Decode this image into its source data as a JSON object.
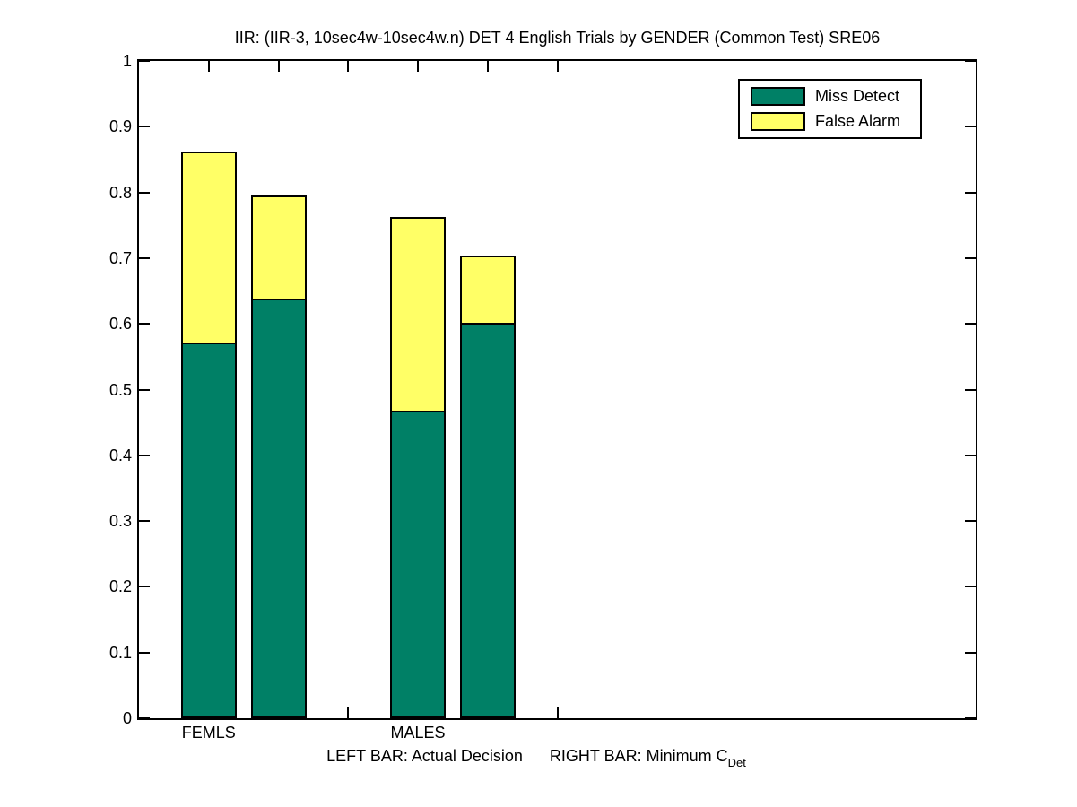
{
  "chart_data": {
    "type": "bar",
    "stacked": true,
    "title": "IIR: (IIR-3, 10sec4w-10sec4w.n) DET 4 English Trials by GENDER (Common Test) SRE06",
    "ylim": [
      0,
      1
    ],
    "xlim": [
      0.5,
      6.5
    ],
    "yticks": [
      0,
      0.1,
      0.2,
      0.3,
      0.4,
      0.5,
      0.6,
      0.7,
      0.8,
      0.9,
      1
    ],
    "xticks": [
      1,
      1.5,
      2,
      2.5,
      3,
      3.5
    ],
    "grid": false,
    "legend_position": "top-right",
    "bar_x": [
      1,
      1.5,
      2.5,
      3
    ],
    "bar_width": 0.4,
    "bar_descriptions": [
      "FEMLS Actual Decision",
      "FEMLS Minimum CDet",
      "MALES Actual Decision",
      "MALES Minimum CDet"
    ],
    "series": [
      {
        "name": "Miss Detect",
        "color": "#008066",
        "values": [
          0.572,
          0.638,
          0.468,
          0.602
        ]
      },
      {
        "name": "False Alarm",
        "color": "#FFFF66",
        "values": [
          0.29,
          0.158,
          0.294,
          0.102
        ]
      }
    ],
    "stack_totals": [
      0.862,
      0.796,
      0.762,
      0.704
    ],
    "group_labels": [
      {
        "label": "FEMLS",
        "x": 1
      },
      {
        "label": "MALES",
        "x": 2.5
      }
    ],
    "caption": {
      "left": "LEFT BAR: Actual Decision",
      "right": "RIGHT BAR: Minimum C",
      "subscript": "Det"
    }
  }
}
